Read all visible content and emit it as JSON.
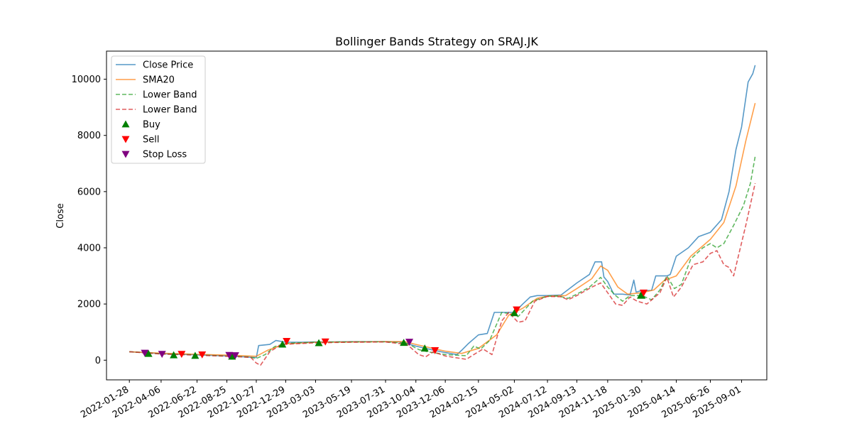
{
  "chart_data": {
    "type": "line",
    "title": "Bollinger Bands Strategy on SRAJ.JK",
    "xlabel": "",
    "ylabel": "Close",
    "ylim": [
      -700,
      11000
    ],
    "xlim": [
      "2021-12-10",
      "2025-10-25"
    ],
    "yticks": [
      0,
      2000,
      4000,
      6000,
      8000,
      10000
    ],
    "xticks": [
      "2022-01-28",
      "2022-04-06",
      "2022-06-22",
      "2022-08-25",
      "2022-10-27",
      "2022-12-29",
      "2023-03-03",
      "2023-05-19",
      "2023-07-31",
      "2023-10-04",
      "2023-12-06",
      "2024-02-15",
      "2024-05-02",
      "2024-07-12",
      "2024-09-13",
      "2024-11-18",
      "2025-01-30",
      "2025-04-14",
      "2025-06-26",
      "2025-09-01"
    ],
    "grid": false,
    "legend_position": "top-left",
    "series": [
      {
        "name": "Close Price",
        "style": "solid",
        "color": "#1f77b4",
        "points": [
          [
            "2022-01-28",
            300
          ],
          [
            "2022-03-01",
            270
          ],
          [
            "2022-04-06",
            230
          ],
          [
            "2022-05-10",
            210
          ],
          [
            "2022-06-22",
            190
          ],
          [
            "2022-07-20",
            175
          ],
          [
            "2022-08-25",
            150
          ],
          [
            "2022-09-20",
            130
          ],
          [
            "2022-10-27",
            90
          ],
          [
            "2022-11-01",
            520
          ],
          [
            "2022-11-25",
            560
          ],
          [
            "2022-12-08",
            700
          ],
          [
            "2022-12-29",
            640
          ],
          [
            "2023-02-01",
            640
          ],
          [
            "2023-03-03",
            650
          ],
          [
            "2023-04-10",
            650
          ],
          [
            "2023-05-19",
            660
          ],
          [
            "2023-07-01",
            660
          ],
          [
            "2023-07-31",
            660
          ],
          [
            "2023-09-01",
            650
          ],
          [
            "2023-09-20",
            560
          ],
          [
            "2023-10-04",
            500
          ],
          [
            "2023-10-25",
            420
          ],
          [
            "2023-11-15",
            340
          ],
          [
            "2023-12-06",
            270
          ],
          [
            "2023-12-31",
            200
          ],
          [
            "2024-01-10",
            350
          ],
          [
            "2024-01-25",
            600
          ],
          [
            "2024-02-15",
            900
          ],
          [
            "2024-03-05",
            950
          ],
          [
            "2024-03-20",
            1700
          ],
          [
            "2024-04-15",
            1700
          ],
          [
            "2024-05-02",
            1700
          ],
          [
            "2024-05-20",
            2000
          ],
          [
            "2024-06-05",
            2250
          ],
          [
            "2024-06-20",
            2300
          ],
          [
            "2024-07-12",
            2300
          ],
          [
            "2024-08-10",
            2320
          ],
          [
            "2024-09-13",
            2750
          ],
          [
            "2024-10-10",
            3050
          ],
          [
            "2024-10-22",
            3500
          ],
          [
            "2024-11-05",
            3500
          ],
          [
            "2024-11-10",
            2960
          ],
          [
            "2024-11-18",
            2800
          ],
          [
            "2024-12-01",
            2350
          ],
          [
            "2024-12-20",
            2350
          ],
          [
            "2025-01-05",
            2320
          ],
          [
            "2025-01-13",
            2850
          ],
          [
            "2025-01-18",
            2420
          ],
          [
            "2025-01-30",
            2480
          ],
          [
            "2025-02-20",
            2480
          ],
          [
            "2025-03-01",
            3000
          ],
          [
            "2025-03-25",
            3000
          ],
          [
            "2025-04-01",
            3050
          ],
          [
            "2025-04-14",
            3700
          ],
          [
            "2025-05-10",
            4000
          ],
          [
            "2025-06-01",
            4400
          ],
          [
            "2025-06-26",
            4550
          ],
          [
            "2025-07-20",
            5000
          ],
          [
            "2025-08-05",
            6000
          ],
          [
            "2025-08-20",
            7500
          ],
          [
            "2025-09-01",
            8300
          ],
          [
            "2025-09-15",
            9900
          ],
          [
            "2025-09-25",
            10200
          ],
          [
            "2025-09-30",
            10500
          ]
        ]
      },
      {
        "name": "SMA20",
        "style": "solid",
        "color": "#ff7f0e",
        "points": [
          [
            "2022-01-28",
            300
          ],
          [
            "2022-04-06",
            250
          ],
          [
            "2022-06-22",
            210
          ],
          [
            "2022-08-25",
            180
          ],
          [
            "2022-10-27",
            140
          ],
          [
            "2022-11-20",
            350
          ],
          [
            "2022-12-29",
            580
          ],
          [
            "2023-03-03",
            640
          ],
          [
            "2023-05-19",
            650
          ],
          [
            "2023-07-31",
            660
          ],
          [
            "2023-09-10",
            660
          ],
          [
            "2023-10-04",
            560
          ],
          [
            "2023-11-15",
            400
          ],
          [
            "2023-12-06",
            320
          ],
          [
            "2024-01-10",
            240
          ],
          [
            "2024-02-15",
            420
          ],
          [
            "2024-03-25",
            900
          ],
          [
            "2024-04-20",
            1600
          ],
          [
            "2024-05-02",
            1700
          ],
          [
            "2024-05-20",
            1850
          ],
          [
            "2024-06-20",
            2200
          ],
          [
            "2024-07-12",
            2280
          ],
          [
            "2024-08-20",
            2300
          ],
          [
            "2024-09-13",
            2550
          ],
          [
            "2024-10-15",
            2900
          ],
          [
            "2024-11-03",
            3350
          ],
          [
            "2024-11-18",
            3200
          ],
          [
            "2024-12-10",
            2600
          ],
          [
            "2024-12-31",
            2350
          ],
          [
            "2025-01-30",
            2400
          ],
          [
            "2025-02-25",
            2500
          ],
          [
            "2025-03-20",
            2850
          ],
          [
            "2025-04-14",
            3000
          ],
          [
            "2025-05-15",
            3700
          ],
          [
            "2025-06-26",
            4300
          ],
          [
            "2025-07-25",
            4900
          ],
          [
            "2025-08-20",
            6200
          ],
          [
            "2025-09-10",
            7800
          ],
          [
            "2025-09-30",
            9150
          ]
        ]
      },
      {
        "name": "Lower Band",
        "style": "dashed",
        "color": "#2ca02c",
        "points": [
          [
            "2022-01-28",
            300
          ],
          [
            "2022-04-06",
            230
          ],
          [
            "2022-06-22",
            190
          ],
          [
            "2022-08-25",
            150
          ],
          [
            "2022-10-10",
            120
          ],
          [
            "2022-10-27",
            60
          ],
          [
            "2022-11-15",
            200
          ],
          [
            "2022-12-05",
            480
          ],
          [
            "2022-12-29",
            600
          ],
          [
            "2023-03-03",
            640
          ],
          [
            "2023-05-19",
            650
          ],
          [
            "2023-07-31",
            655
          ],
          [
            "2023-09-15",
            600
          ],
          [
            "2023-10-10",
            380
          ],
          [
            "2023-11-01",
            290
          ],
          [
            "2023-12-06",
            200
          ],
          [
            "2024-01-20",
            160
          ],
          [
            "2024-02-05",
            500
          ],
          [
            "2024-02-20",
            400
          ],
          [
            "2024-03-10",
            700
          ],
          [
            "2024-04-05",
            1700
          ],
          [
            "2024-04-25",
            1650
          ],
          [
            "2024-05-10",
            1550
          ],
          [
            "2024-06-10",
            2100
          ],
          [
            "2024-07-12",
            2280
          ],
          [
            "2024-08-05",
            2280
          ],
          [
            "2024-08-25",
            2200
          ],
          [
            "2024-09-13",
            2350
          ],
          [
            "2024-10-10",
            2600
          ],
          [
            "2024-11-03",
            2950
          ],
          [
            "2024-11-18",
            2600
          ],
          [
            "2024-12-05",
            2300
          ],
          [
            "2024-12-20",
            2100
          ],
          [
            "2025-01-05",
            2300
          ],
          [
            "2025-01-30",
            2300
          ],
          [
            "2025-02-20",
            2150
          ],
          [
            "2025-03-10",
            2500
          ],
          [
            "2025-03-25",
            3000
          ],
          [
            "2025-04-10",
            2550
          ],
          [
            "2025-04-25",
            2700
          ],
          [
            "2025-05-15",
            3600
          ],
          [
            "2025-06-10",
            4000
          ],
          [
            "2025-06-26",
            4150
          ],
          [
            "2025-07-10",
            4000
          ],
          [
            "2025-07-25",
            4150
          ],
          [
            "2025-08-15",
            4800
          ],
          [
            "2025-09-05",
            5500
          ],
          [
            "2025-09-20",
            6300
          ],
          [
            "2025-09-30",
            7250
          ]
        ]
      },
      {
        "name": "Lower Band",
        "style": "dashed",
        "color": "#d62728",
        "points": [
          [
            "2022-01-28",
            300
          ],
          [
            "2022-04-06",
            220
          ],
          [
            "2022-06-22",
            180
          ],
          [
            "2022-08-25",
            140
          ],
          [
            "2022-10-15",
            100
          ],
          [
            "2022-10-27",
            -100
          ],
          [
            "2022-11-05",
            -180
          ],
          [
            "2022-11-25",
            300
          ],
          [
            "2022-12-20",
            560
          ],
          [
            "2023-03-03",
            620
          ],
          [
            "2023-05-19",
            640
          ],
          [
            "2023-07-31",
            650
          ],
          [
            "2023-09-15",
            560
          ],
          [
            "2023-10-10",
            200
          ],
          [
            "2023-10-25",
            120
          ],
          [
            "2023-11-10",
            300
          ],
          [
            "2023-12-06",
            150
          ],
          [
            "2024-01-20",
            30
          ],
          [
            "2024-02-05",
            200
          ],
          [
            "2024-02-25",
            400
          ],
          [
            "2024-03-15",
            200
          ],
          [
            "2024-04-05",
            1400
          ],
          [
            "2024-04-20",
            1700
          ],
          [
            "2024-05-10",
            1350
          ],
          [
            "2024-05-25",
            1400
          ],
          [
            "2024-06-15",
            2100
          ],
          [
            "2024-07-12",
            2270
          ],
          [
            "2024-08-10",
            2260
          ],
          [
            "2024-08-25",
            2150
          ],
          [
            "2024-09-13",
            2300
          ],
          [
            "2024-10-15",
            2600
          ],
          [
            "2024-11-03",
            2750
          ],
          [
            "2024-11-18",
            2400
          ],
          [
            "2024-12-05",
            2000
          ],
          [
            "2024-12-20",
            1950
          ],
          [
            "2025-01-05",
            2250
          ],
          [
            "2025-01-20",
            2100
          ],
          [
            "2025-02-10",
            2000
          ],
          [
            "2025-03-10",
            2400
          ],
          [
            "2025-03-25",
            2950
          ],
          [
            "2025-04-08",
            2250
          ],
          [
            "2025-04-25",
            2600
          ],
          [
            "2025-05-20",
            3400
          ],
          [
            "2025-06-10",
            3500
          ],
          [
            "2025-06-26",
            3800
          ],
          [
            "2025-07-10",
            3900
          ],
          [
            "2025-07-25",
            3400
          ],
          [
            "2025-08-05",
            3300
          ],
          [
            "2025-08-15",
            3000
          ],
          [
            "2025-08-25",
            3700
          ],
          [
            "2025-09-10",
            4800
          ],
          [
            "2025-09-30",
            6300
          ]
        ]
      }
    ],
    "markers": [
      {
        "name": "Buy",
        "symbol": "triangle-up",
        "color": "#008000",
        "points": [
          [
            "2022-03-10",
            230
          ],
          [
            "2022-05-03",
            180
          ],
          [
            "2022-06-18",
            160
          ],
          [
            "2022-09-05",
            130
          ],
          [
            "2022-12-22",
            560
          ],
          [
            "2023-03-10",
            610
          ],
          [
            "2023-09-08",
            620
          ],
          [
            "2023-10-23",
            420
          ],
          [
            "2024-05-02",
            1680
          ],
          [
            "2025-01-28",
            2300
          ],
          [
            "2025-01-30",
            2300
          ]
        ]
      },
      {
        "name": "Sell",
        "symbol": "triangle-down",
        "color": "#ff0000",
        "points": [
          [
            "2022-05-20",
            220
          ],
          [
            "2022-07-03",
            200
          ],
          [
            "2022-12-31",
            680
          ],
          [
            "2023-03-24",
            660
          ],
          [
            "2023-11-14",
            350
          ],
          [
            "2024-05-07",
            1800
          ],
          [
            "2025-02-03",
            2400
          ]
        ]
      },
      {
        "name": "Stop Loss",
        "symbol": "triangle-down",
        "color": "#800080",
        "points": [
          [
            "2022-03-02",
            260
          ],
          [
            "2022-04-08",
            220
          ],
          [
            "2022-08-30",
            180
          ],
          [
            "2022-09-12",
            170
          ],
          [
            "2023-09-20",
            650
          ]
        ]
      }
    ]
  }
}
